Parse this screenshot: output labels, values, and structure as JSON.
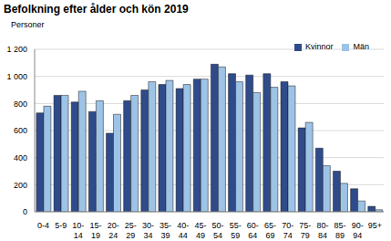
{
  "chart_data": {
    "type": "bar",
    "title": "Befolkning efter ålder och kön 2019",
    "subtitle": "Personer",
    "categories": [
      "0-4",
      "5-9",
      "10-14",
      "15-19",
      "20-24",
      "25-29",
      "30-34",
      "35-39",
      "40-44",
      "45-49",
      "50-54",
      "55-59",
      "60-64",
      "65-69",
      "70-74",
      "75-79",
      "80-84",
      "85-89",
      "90-94",
      "95+"
    ],
    "series": [
      {
        "name": "Kvinnor",
        "color": "#2f4b8a",
        "values": [
          730,
          860,
          810,
          740,
          580,
          820,
          900,
          940,
          910,
          980,
          1090,
          1020,
          1010,
          1020,
          960,
          620,
          470,
          300,
          170,
          40
        ]
      },
      {
        "name": "Män",
        "color": "#9dc3e6",
        "values": [
          780,
          860,
          890,
          820,
          720,
          860,
          960,
          970,
          940,
          980,
          1070,
          960,
          880,
          920,
          930,
          660,
          340,
          210,
          80,
          15
        ]
      }
    ],
    "ylim": [
      0,
      1200
    ],
    "yticks": [
      0,
      200,
      400,
      600,
      800,
      {
        "value": 1000,
        "label": "1 000"
      },
      {
        "value": 1200,
        "label": "1 200"
      }
    ],
    "grid": true,
    "legend": "upper right"
  }
}
